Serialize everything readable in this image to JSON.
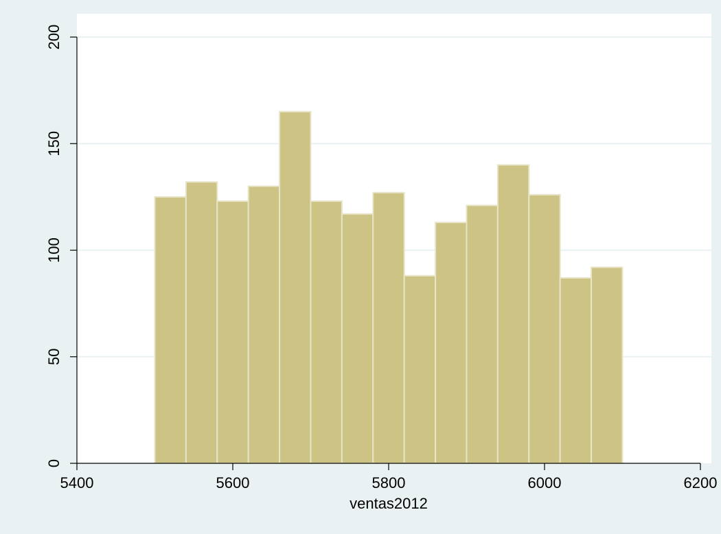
{
  "chart_data": {
    "type": "bar",
    "title": "",
    "xlabel": "ventas2012",
    "ylabel": "",
    "xlim": [
      5400,
      6200
    ],
    "ylim": [
      0,
      200
    ],
    "xticks": [
      5400,
      5600,
      5800,
      6000,
      6200
    ],
    "yticks": [
      0,
      50,
      100,
      150,
      200
    ],
    "bin_width": 40,
    "bins": [
      {
        "start": 5500,
        "end": 5540,
        "count": 125
      },
      {
        "start": 5540,
        "end": 5580,
        "count": 132
      },
      {
        "start": 5580,
        "end": 5620,
        "count": 123
      },
      {
        "start": 5620,
        "end": 5660,
        "count": 130
      },
      {
        "start": 5660,
        "end": 5700,
        "count": 165
      },
      {
        "start": 5700,
        "end": 5740,
        "count": 123
      },
      {
        "start": 5740,
        "end": 5780,
        "count": 117
      },
      {
        "start": 5780,
        "end": 5820,
        "count": 127
      },
      {
        "start": 5820,
        "end": 5860,
        "count": 88
      },
      {
        "start": 5860,
        "end": 5900,
        "count": 113
      },
      {
        "start": 5900,
        "end": 5940,
        "count": 121
      },
      {
        "start": 5940,
        "end": 5980,
        "count": 140
      },
      {
        "start": 5980,
        "end": 6020,
        "count": 126
      },
      {
        "start": 6020,
        "end": 6060,
        "count": 87
      },
      {
        "start": 6060,
        "end": 6100,
        "count": 92
      }
    ],
    "grid": true,
    "colors": {
      "background": "#eaf1f3",
      "plot_area": "#ffffff",
      "bar_fill": "#cdc385",
      "bar_stroke": "#e8e4c8",
      "gridline": "#eaf1f3",
      "axis": "#000000"
    }
  }
}
